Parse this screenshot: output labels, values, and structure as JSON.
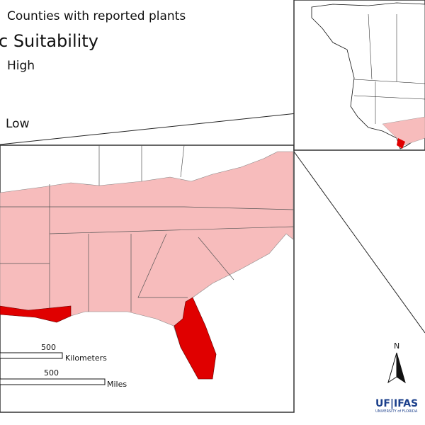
{
  "legend": {
    "reported": "Counties with reported plants",
    "title": "c Suitability",
    "high": "High",
    "low": "Low"
  },
  "scale_bar": {
    "km_value": "500",
    "km_unit": "Kilometers",
    "mi_value": "500",
    "mi_unit": "Miles"
  },
  "north": "N",
  "logo": {
    "name": "UF|IFAS",
    "sub": "UNIVERSITY of FLORIDA"
  }
}
